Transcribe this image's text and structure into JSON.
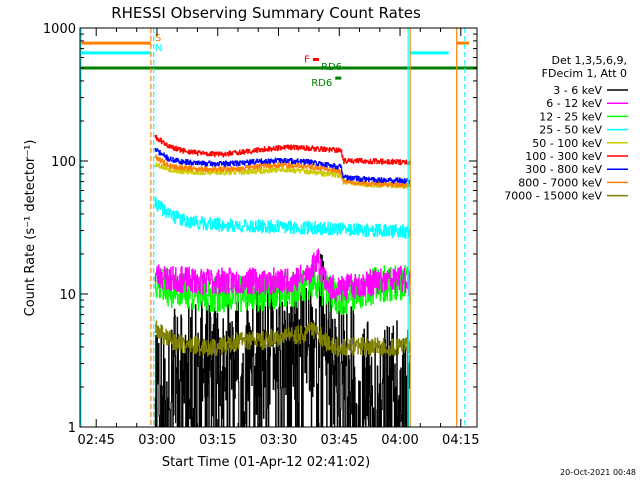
{
  "chart_data": {
    "type": "line",
    "title": "RHESSI Observing Summary Count Rates",
    "xlabel": "Start Time (01-Apr-12 02:41:02)",
    "ylabel": "Count Rate (s⁻¹ detector⁻¹)",
    "y_scale": "log",
    "ylim": [
      1,
      1000
    ],
    "xlim_minutes": [
      0,
      98
    ],
    "x_tick_labels": [
      {
        "label": "02:45",
        "minute": 4
      },
      {
        "label": "03:00",
        "minute": 19
      },
      {
        "label": "03:15",
        "minute": 34
      },
      {
        "label": "03:30",
        "minute": 49
      },
      {
        "label": "03:45",
        "minute": 64
      },
      {
        "label": "04:00",
        "minute": 79
      },
      {
        "label": "04:15",
        "minute": 94
      }
    ],
    "y_tick_labels": [
      {
        "label": "1",
        "value": 1
      },
      {
        "label": "10",
        "value": 10
      },
      {
        "label": "100",
        "value": 100
      },
      {
        "label": "1000",
        "value": 1000
      }
    ],
    "legend_header": [
      "Det 1,3,5,6,9,",
      "FDecim 1, Att 0"
    ],
    "series": [
      {
        "name": "3 - 6 keV",
        "color": "#000000",
        "seed": 11,
        "points": [
          [
            18.5,
            3
          ],
          [
            20,
            2.8
          ],
          [
            25,
            2.6
          ],
          [
            30,
            2.8
          ],
          [
            35,
            3
          ],
          [
            40,
            3
          ],
          [
            45,
            3.5
          ],
          [
            50,
            4
          ],
          [
            55,
            4.5
          ],
          [
            58,
            5
          ],
          [
            59,
            8
          ],
          [
            61,
            5
          ],
          [
            63,
            3
          ],
          [
            65,
            3
          ],
          [
            70,
            2
          ],
          [
            75,
            2
          ],
          [
            80,
            2
          ],
          [
            81.5,
            2
          ]
        ],
        "noise": 0.5,
        "floor": 1
      },
      {
        "name": "6 - 12 keV",
        "color": "#ff00ff",
        "seed": 23,
        "points": [
          [
            18.5,
            14
          ],
          [
            22,
            13
          ],
          [
            30,
            12.5
          ],
          [
            40,
            12.5
          ],
          [
            50,
            12.5
          ],
          [
            55,
            13.5
          ],
          [
            57,
            15
          ],
          [
            58.5,
            19
          ],
          [
            60,
            14
          ],
          [
            62,
            11
          ],
          [
            65,
            11
          ],
          [
            70,
            12
          ],
          [
            75,
            12.5
          ],
          [
            80,
            13
          ],
          [
            81.5,
            12
          ]
        ],
        "noise": 0.1
      },
      {
        "name": "12 - 25 keV",
        "color": "#00ff00",
        "seed": 37,
        "points": [
          [
            18.5,
            13
          ],
          [
            22,
            11
          ],
          [
            30,
            10
          ],
          [
            40,
            10
          ],
          [
            50,
            10.5
          ],
          [
            55,
            11
          ],
          [
            58,
            12
          ],
          [
            60,
            11
          ],
          [
            62,
            10
          ],
          [
            65,
            9.5
          ],
          [
            70,
            11
          ],
          [
            75,
            12
          ],
          [
            80,
            12
          ],
          [
            81.5,
            11
          ]
        ],
        "noise": 0.14
      },
      {
        "name": "25 - 50 keV",
        "color": "#00ffff",
        "seed": 41,
        "points": [
          [
            18.5,
            48
          ],
          [
            22,
            40
          ],
          [
            25,
            36
          ],
          [
            30,
            34
          ],
          [
            35,
            33
          ],
          [
            40,
            32.5
          ],
          [
            45,
            32
          ],
          [
            50,
            32
          ],
          [
            55,
            31.5
          ],
          [
            62,
            31
          ],
          [
            64.5,
            31
          ],
          [
            65,
            30.5
          ],
          [
            70,
            30
          ],
          [
            75,
            30
          ],
          [
            80,
            29.5
          ],
          [
            81.5,
            29
          ]
        ],
        "noise": 0.05
      },
      {
        "name": "50 - 100 keV",
        "color": "#cccc00",
        "seed": 53,
        "points": [
          [
            18.5,
            95
          ],
          [
            22,
            87
          ],
          [
            25,
            83
          ],
          [
            30,
            82
          ],
          [
            35,
            82
          ],
          [
            40,
            83
          ],
          [
            45,
            84
          ],
          [
            50,
            87
          ],
          [
            55,
            84
          ],
          [
            60,
            80
          ],
          [
            64.5,
            78
          ],
          [
            65,
            70
          ],
          [
            70,
            67
          ],
          [
            75,
            66
          ],
          [
            80,
            65
          ],
          [
            81.5,
            65
          ]
        ],
        "noise": 0.02
      },
      {
        "name": "100 - 300 keV",
        "color": "#ff0000",
        "seed": 61,
        "points": [
          [
            18.5,
            152
          ],
          [
            22,
            128
          ],
          [
            25,
            120
          ],
          [
            30,
            114
          ],
          [
            35,
            112
          ],
          [
            40,
            116
          ],
          [
            45,
            122
          ],
          [
            50,
            126
          ],
          [
            55,
            126
          ],
          [
            60,
            123
          ],
          [
            64.5,
            119
          ],
          [
            65,
            100
          ],
          [
            70,
            100
          ],
          [
            75,
            99
          ],
          [
            80,
            98
          ],
          [
            81.5,
            98
          ]
        ],
        "noise": 0.02
      },
      {
        "name": "300 - 800 keV",
        "color": "#0000ff",
        "seed": 71,
        "points": [
          [
            18.5,
            122
          ],
          [
            22,
            103
          ],
          [
            25,
            99
          ],
          [
            30,
            96
          ],
          [
            35,
            95
          ],
          [
            40,
            97
          ],
          [
            45,
            100
          ],
          [
            50,
            101
          ],
          [
            55,
            99
          ],
          [
            60,
            95
          ],
          [
            64.5,
            90
          ],
          [
            65,
            75
          ],
          [
            70,
            73
          ],
          [
            75,
            72
          ],
          [
            80,
            71
          ],
          [
            81.5,
            71
          ]
        ],
        "noise": 0.02
      },
      {
        "name": "800 - 7000 keV",
        "color": "#ff8000",
        "seed": 79,
        "points": [
          [
            18.5,
            108
          ],
          [
            22,
            92
          ],
          [
            25,
            89
          ],
          [
            30,
            87
          ],
          [
            35,
            87
          ],
          [
            40,
            88
          ],
          [
            45,
            92
          ],
          [
            50,
            94
          ],
          [
            55,
            92
          ],
          [
            60,
            88
          ],
          [
            64.5,
            82
          ],
          [
            65,
            70
          ],
          [
            70,
            68
          ],
          [
            75,
            67
          ],
          [
            80,
            66
          ],
          [
            81.5,
            66
          ]
        ],
        "noise": 0.02
      },
      {
        "name": "7000 - 15000 keV",
        "color": "#808000",
        "seed": 89,
        "points": [
          [
            18.5,
            5.5
          ],
          [
            20,
            5
          ],
          [
            25,
            4.2
          ],
          [
            30,
            4
          ],
          [
            35,
            4
          ],
          [
            40,
            4.5
          ],
          [
            45,
            4.5
          ],
          [
            50,
            4.8
          ],
          [
            55,
            5
          ],
          [
            58,
            5.5
          ],
          [
            60,
            4.5
          ],
          [
            62,
            4
          ],
          [
            65,
            4
          ],
          [
            70,
            4
          ],
          [
            75,
            4
          ],
          [
            80,
            4
          ],
          [
            81.5,
            4
          ]
        ],
        "noise": 0.07
      }
    ],
    "flags": [
      {
        "label": "S",
        "color": "#ff8000",
        "value": 770,
        "segments": [
          [
            0,
            17.5
          ],
          [
            93,
            96
          ]
        ]
      },
      {
        "label": "N",
        "color": "#00ffff",
        "value": 650,
        "segments": [
          [
            0,
            17.5
          ],
          [
            81.5,
            91
          ]
        ]
      },
      {
        "label": "RD6",
        "color": "#008000",
        "value": 500,
        "segments": [
          [
            0,
            98
          ]
        ]
      },
      {
        "label": "F",
        "color": "#ff0000",
        "value": 580,
        "segments": [
          [
            57.5,
            59
          ]
        ]
      },
      {
        "label": "RD6",
        "color": "#008000",
        "value": 420,
        "segments": [
          [
            63,
            64.5
          ]
        ]
      }
    ],
    "vertical_lines": [
      {
        "minute": 0,
        "color": "#00ffff",
        "style": "solid"
      },
      {
        "minute": 17.5,
        "color": "#ff8000",
        "style": "dashed"
      },
      {
        "minute": 18.2,
        "color": "#00ffff",
        "style": "dashed"
      },
      {
        "minute": 81,
        "color": "#00ffff",
        "style": "solid"
      },
      {
        "minute": 81.5,
        "color": "#ff8000",
        "style": "solid"
      },
      {
        "minute": 93,
        "color": "#ff8000",
        "style": "solid"
      },
      {
        "minute": 95,
        "color": "#00ffff",
        "style": "dashed"
      }
    ],
    "timestamp": "20-Oct-2021 00:48"
  }
}
